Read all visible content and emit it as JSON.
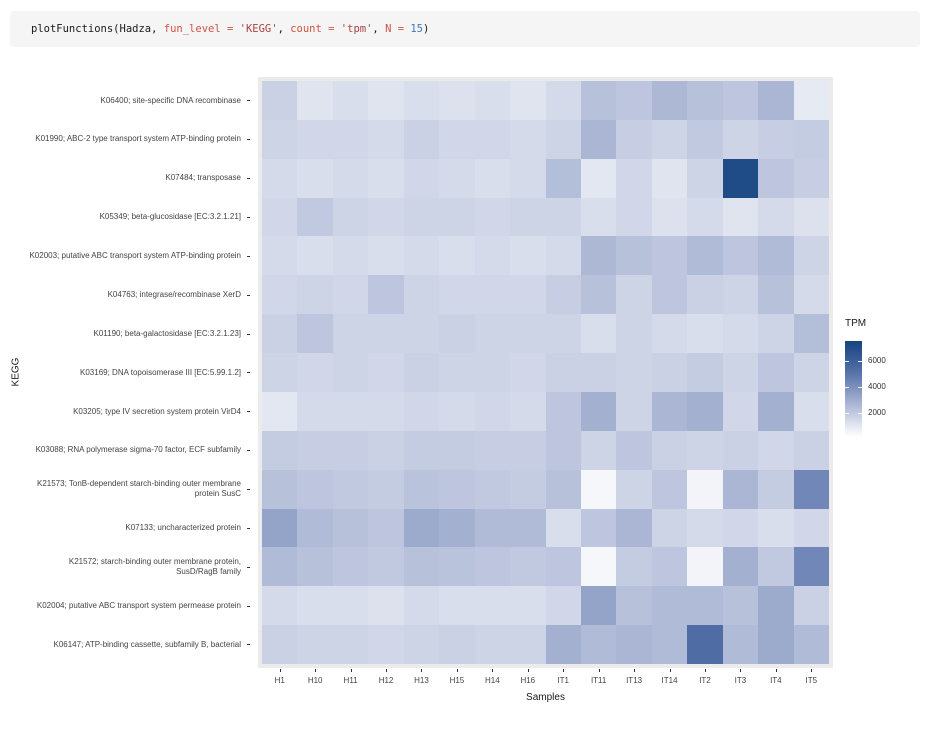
{
  "code_block": {
    "bg": "#f5f5f5",
    "tokens": [
      {
        "text": "plotFunctions(Hadza",
        "color": "#1a1a1a"
      },
      {
        "text": ", ",
        "color": "#1a1a1a"
      },
      {
        "text": "fun_level = ",
        "color": "#cf5346"
      },
      {
        "text": "'KEGG'",
        "color": "#a94442"
      },
      {
        "text": ", ",
        "color": "#1a1a1a"
      },
      {
        "text": "count = ",
        "color": "#cf5346"
      },
      {
        "text": "'tpm'",
        "color": "#a94442"
      },
      {
        "text": ", ",
        "color": "#1a1a1a"
      },
      {
        "text": "N = ",
        "color": "#cf5346"
      },
      {
        "text": "15",
        "color": "#3e7bb6"
      },
      {
        "text": ")",
        "color": "#1a1a1a"
      }
    ]
  },
  "chart_data": {
    "type": "heatmap",
    "title": "",
    "xlabel": "Samples",
    "ylabel": "KEGG",
    "panel_bg": "#ebebeb",
    "x_categories": [
      "H1",
      "H10",
      "H11",
      "H12",
      "H13",
      "H15",
      "H14",
      "H16",
      "IT1",
      "IT11",
      "IT13",
      "IT14",
      "IT2",
      "IT3",
      "IT4",
      "IT5"
    ],
    "y_categories": [
      "K06400; site-specific DNA recombinase",
      "K01990; ABC-2 type transport system ATP-binding protein",
      "K07484; transposase",
      "K05349; beta-glucosidase [EC:3.2.1.21]",
      "K02003; putative ABC transport system ATP-binding protein",
      "K04763; integrase/recombinase XerD",
      "K01190; beta-galactosidase [EC:3.2.1.23]",
      "K03169; DNA topoisomerase III [EC:5.99.1.2]",
      "K03205; type IV secretion system protein VirD4",
      "K03088; RNA polymerase sigma-70 factor, ECF subfamily",
      "K21573; TonB-dependent starch-binding outer membrane protein SusC",
      "K07133; uncharacterized protein",
      "K21572; starch-binding outer membrane protein, SusD/RagB family",
      "K02004; putative ABC transport system permease protein",
      "K06147; ATP-binding cassette, subfamily B, bacterial"
    ],
    "values": [
      [
        1700,
        1100,
        1300,
        1100,
        1300,
        1200,
        1300,
        1100,
        1400,
        2300,
        2100,
        2600,
        2300,
        2100,
        2700,
        900
      ],
      [
        1600,
        1500,
        1500,
        1400,
        1700,
        1500,
        1500,
        1400,
        1600,
        2700,
        1800,
        1600,
        2000,
        1600,
        1800,
        1900
      ],
      [
        1400,
        1300,
        1400,
        1300,
        1500,
        1400,
        1300,
        1400,
        2400,
        1000,
        1500,
        1100,
        1600,
        7200,
        2100,
        1800
      ],
      [
        1500,
        2000,
        1600,
        1500,
        1600,
        1600,
        1500,
        1600,
        1600,
        1300,
        1500,
        1200,
        1400,
        1100,
        1400,
        1200
      ],
      [
        1400,
        1300,
        1400,
        1300,
        1400,
        1300,
        1400,
        1300,
        1400,
        2600,
        2300,
        2100,
        2500,
        2100,
        2500,
        1600
      ],
      [
        1500,
        1600,
        1500,
        2100,
        1600,
        1500,
        1500,
        1500,
        1800,
        2300,
        1600,
        2100,
        1700,
        1600,
        2300,
        1400
      ],
      [
        1700,
        2100,
        1600,
        1600,
        1600,
        1700,
        1600,
        1600,
        1600,
        1300,
        1600,
        1400,
        1300,
        1400,
        1600,
        2400
      ],
      [
        1600,
        1500,
        1600,
        1500,
        1700,
        1600,
        1600,
        1500,
        1700,
        1700,
        1600,
        1700,
        1900,
        1600,
        2100,
        1600
      ],
      [
        1000,
        1400,
        1400,
        1400,
        1500,
        1400,
        1500,
        1400,
        2100,
        2900,
        1600,
        2700,
        2900,
        1500,
        2900,
        1300
      ],
      [
        1900,
        1800,
        1800,
        1700,
        1900,
        1900,
        1800,
        1800,
        2100,
        1600,
        2100,
        1700,
        1600,
        1700,
        1500,
        1700
      ],
      [
        2300,
        2100,
        2000,
        1900,
        2200,
        2100,
        2000,
        1900,
        2300,
        400,
        1600,
        2100,
        500,
        2700,
        1900,
        4300
      ],
      [
        3300,
        2500,
        2300,
        2100,
        3100,
        2900,
        2500,
        2500,
        1300,
        2100,
        2700,
        1600,
        1400,
        1500,
        1300,
        1500
      ],
      [
        2500,
        2300,
        2100,
        2000,
        2300,
        2200,
        2100,
        2000,
        2100,
        400,
        1900,
        2100,
        500,
        2900,
        2000,
        4300
      ],
      [
        1400,
        1300,
        1300,
        1200,
        1400,
        1300,
        1300,
        1300,
        1500,
        3300,
        2300,
        2500,
        2500,
        2300,
        3100,
        1700
      ],
      [
        1700,
        1600,
        1600,
        1500,
        1600,
        1700,
        1600,
        1600,
        2900,
        2500,
        2700,
        2500,
        5400,
        2500,
        3100,
        2500
      ]
    ],
    "legend": {
      "title": "TPM",
      "ticks": [
        6000,
        4000,
        2000
      ],
      "domain": [
        100,
        7600
      ]
    },
    "color_stops": [
      [
        0,
        "#FFFFFF"
      ],
      [
        0.12,
        "#E3E7F1"
      ],
      [
        0.2,
        "#CDD4E6"
      ],
      [
        0.35,
        "#A9B5D3"
      ],
      [
        0.55,
        "#7389B8"
      ],
      [
        0.75,
        "#45649F"
      ],
      [
        1,
        "#15457F"
      ]
    ]
  }
}
